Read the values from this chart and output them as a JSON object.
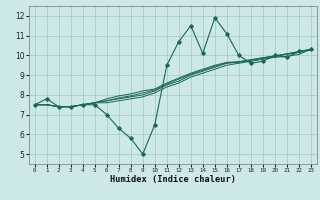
{
  "xlabel": "Humidex (Indice chaleur)",
  "xlim": [
    -0.5,
    23.5
  ],
  "ylim": [
    4.5,
    12.5
  ],
  "xticks": [
    0,
    1,
    2,
    3,
    4,
    5,
    6,
    7,
    8,
    9,
    10,
    11,
    12,
    13,
    14,
    15,
    16,
    17,
    18,
    19,
    20,
    21,
    22,
    23
  ],
  "yticks": [
    5,
    6,
    7,
    8,
    9,
    10,
    11,
    12
  ],
  "bg_color": "#cce8e8",
  "grid_color": "#aacccc",
  "line_color": "#1a6858",
  "lines": [
    [
      7.5,
      7.8,
      7.4,
      7.4,
      7.5,
      7.5,
      7.0,
      6.3,
      5.8,
      5.0,
      6.5,
      9.5,
      10.7,
      11.5,
      10.1,
      11.9,
      11.1,
      10.0,
      9.6,
      9.7,
      10.0,
      9.9,
      10.2,
      10.3
    ],
    [
      7.5,
      7.5,
      7.4,
      7.4,
      7.5,
      7.6,
      7.6,
      7.7,
      7.8,
      7.9,
      8.1,
      8.4,
      8.6,
      8.9,
      9.1,
      9.3,
      9.5,
      9.6,
      9.7,
      9.8,
      9.9,
      9.95,
      10.05,
      10.3
    ],
    [
      7.5,
      7.5,
      7.4,
      7.4,
      7.5,
      7.6,
      7.7,
      7.8,
      7.9,
      8.0,
      8.2,
      8.5,
      8.7,
      9.0,
      9.2,
      9.4,
      9.6,
      9.65,
      9.75,
      9.85,
      9.95,
      10.05,
      10.15,
      10.3
    ],
    [
      7.5,
      7.5,
      7.4,
      7.4,
      7.5,
      7.6,
      7.7,
      7.85,
      7.95,
      8.1,
      8.25,
      8.55,
      8.8,
      9.05,
      9.25,
      9.45,
      9.62,
      9.67,
      9.77,
      9.87,
      9.97,
      10.07,
      10.17,
      10.3
    ],
    [
      7.5,
      7.5,
      7.4,
      7.4,
      7.5,
      7.6,
      7.8,
      7.95,
      8.05,
      8.2,
      8.3,
      8.6,
      8.85,
      9.1,
      9.3,
      9.5,
      9.65,
      9.68,
      9.78,
      9.88,
      9.98,
      10.08,
      10.2,
      10.3
    ]
  ]
}
